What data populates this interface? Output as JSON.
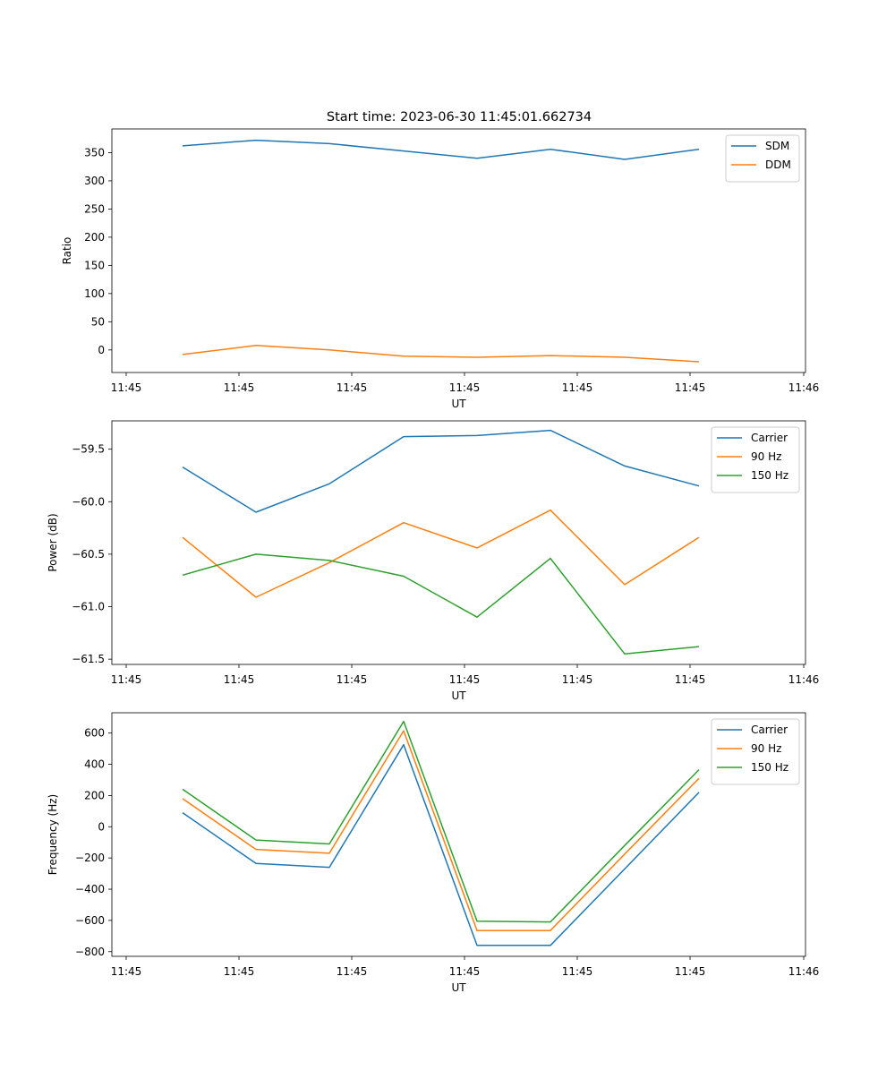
{
  "figure": {
    "title": "Start time: 2023-06-30 11:45:01.662734"
  },
  "chart_data": [
    {
      "type": "line",
      "xlabel": "UT",
      "ylabel": "Ratio",
      "x_tick_labels": [
        "11:45",
        "11:45",
        "11:45",
        "11:45",
        "11:45",
        "11:45",
        "11:46"
      ],
      "ylim": [
        -40,
        392
      ],
      "y_ticks": [
        0,
        50,
        100,
        150,
        200,
        250,
        300,
        350
      ],
      "grid": false,
      "legend_position": "upper right",
      "series": [
        {
          "name": "SDM",
          "color": "#1f77b4",
          "values": [
            362,
            372,
            366,
            353,
            340,
            356,
            338,
            356
          ]
        },
        {
          "name": "DDM",
          "color": "#ff7f0e",
          "values": [
            -8,
            8,
            0,
            -11,
            -13,
            -10,
            -13,
            -21
          ]
        }
      ]
    },
    {
      "type": "line",
      "xlabel": "UT",
      "ylabel": "Power (dB)",
      "x_tick_labels": [
        "11:45",
        "11:45",
        "11:45",
        "11:45",
        "11:45",
        "11:45",
        "11:46"
      ],
      "ylim": [
        -61.55,
        -59.23
      ],
      "y_ticks": [
        -61.5,
        -61.0,
        -60.5,
        -60.0,
        -59.5
      ],
      "y_tick_labels": [
        "−61.5",
        "−61.0",
        "−60.5",
        "−60.0",
        "−59.5"
      ],
      "grid": false,
      "legend_position": "upper right",
      "series": [
        {
          "name": "Carrier",
          "color": "#1f77b4",
          "values": [
            -59.67,
            -60.1,
            -59.83,
            -59.38,
            -59.37,
            -59.32,
            -59.66,
            -59.85
          ]
        },
        {
          "name": "90 Hz",
          "color": "#ff7f0e",
          "values": [
            -60.34,
            -60.91,
            -60.58,
            -60.2,
            -60.44,
            -60.08,
            -60.79,
            -60.34
          ]
        },
        {
          "name": "150 Hz",
          "color": "#2ca02c",
          "values": [
            -60.7,
            -60.5,
            -60.56,
            -60.71,
            -61.1,
            -60.54,
            -61.45,
            -61.38
          ]
        }
      ]
    },
    {
      "type": "line",
      "xlabel": "UT",
      "ylabel": "Frequency (Hz)",
      "x_tick_labels": [
        "11:45",
        "11:45",
        "11:45",
        "11:45",
        "11:45",
        "11:45",
        "11:46"
      ],
      "ylim": [
        -830,
        730
      ],
      "y_ticks": [
        -800,
        -600,
        -400,
        -200,
        0,
        200,
        400,
        600
      ],
      "y_tick_labels": [
        "−800",
        "−600",
        "−400",
        "−200",
        "0",
        "200",
        "400",
        "600"
      ],
      "grid": false,
      "legend_position": "upper right",
      "series": [
        {
          "name": "Carrier",
          "color": "#1f77b4",
          "values": [
            90,
            -235,
            -260,
            525,
            -760,
            -760,
            -270,
            220
          ]
        },
        {
          "name": "90 Hz",
          "color": "#ff7f0e",
          "values": [
            180,
            -145,
            -170,
            615,
            -665,
            -665,
            -175,
            310
          ]
        },
        {
          "name": "150 Hz",
          "color": "#2ca02c",
          "values": [
            240,
            -85,
            -110,
            675,
            -605,
            -610,
            -120,
            365
          ]
        }
      ]
    }
  ]
}
